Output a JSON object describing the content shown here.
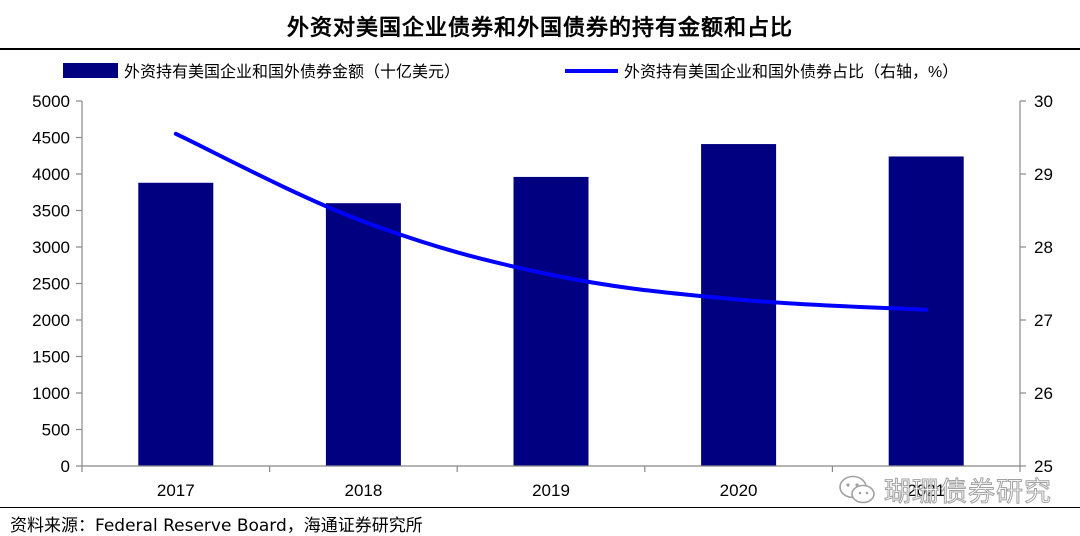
{
  "chart_data": {
    "type": "bar",
    "title": "外资对美国企业债券和外国债券的持有金额和占比",
    "categories": [
      "2017",
      "2018",
      "2019",
      "2020",
      "2021"
    ],
    "series": [
      {
        "name": "外资持有美国企业和国外债券金额（十亿美元）",
        "type": "bar",
        "axis": "left",
        "values": [
          3880,
          3600,
          3960,
          4410,
          4240
        ]
      },
      {
        "name": "外资持有美国企业和国外债券占比（右轴，%）",
        "type": "line",
        "axis": "right",
        "values": [
          29.55,
          28.35,
          27.62,
          27.28,
          27.14
        ]
      }
    ],
    "y_left": {
      "min": 0,
      "max": 5000,
      "step": 500
    },
    "y_right": {
      "min": 25,
      "max": 30,
      "step": 1
    },
    "legend_position": "top",
    "grid": false,
    "colors": {
      "bar": "#000080",
      "line": "#0000ff"
    }
  },
  "source": "资料来源：Federal Reserve Board，海通证券研究所",
  "watermark": "瑚珊债券研究"
}
